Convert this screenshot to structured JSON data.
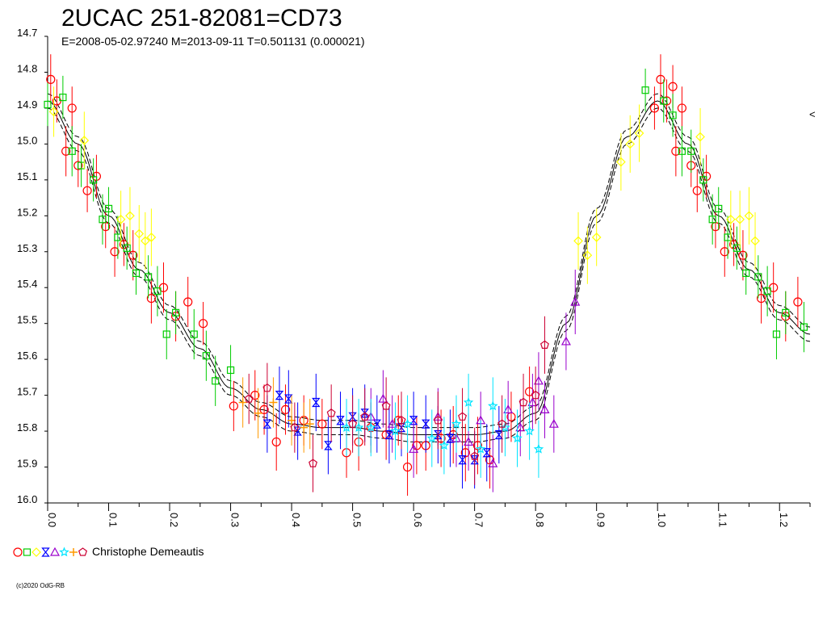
{
  "chart_data": {
    "type": "scatter",
    "title": "2UCAC 251-82081=CD73",
    "subtitle": "E=2008-05-02.97240    M=2013-09-11    T=0.501131 (0.000021)",
    "xlabel": "",
    "ylabel": "",
    "xlim": [
      0.0,
      1.25
    ],
    "ylim": [
      16.0,
      14.7
    ],
    "y_inverted": true,
    "x_ticks": [
      "0.0",
      "0.1",
      "0.2",
      "0.3",
      "0.4",
      "0.5",
      "0.6",
      "0.7",
      "0.8",
      "0.9",
      "1.0",
      "1.1",
      "1.2"
    ],
    "y_ticks": [
      "14.7",
      "14.8",
      "14.9",
      "15.0",
      "15.1",
      "15.2",
      "15.3",
      "15.4",
      "15.5",
      "15.6",
      "15.7",
      "15.8",
      "15.9",
      "16.0"
    ],
    "right_marker": "<",
    "legend": {
      "label": "Christophe Demeautis",
      "placement": "bottom-left"
    },
    "copyright": "(c)2020 OdG-RB",
    "colors": {
      "red": "#ff0000",
      "green": "#00cc00",
      "yellow": "#ffff00",
      "blue": "#0000ff",
      "purple": "#9900cc",
      "cyan": "#00e5ff",
      "orange": "#ff9900",
      "crimson": "#cc0033"
    },
    "fit_curve": {
      "phase": [
        0.0,
        0.05,
        0.1,
        0.15,
        0.2,
        0.25,
        0.3,
        0.35,
        0.4,
        0.45,
        0.5,
        0.55,
        0.6,
        0.65,
        0.7,
        0.75,
        0.8,
        0.85,
        0.9,
        0.95,
        1.0,
        1.05,
        1.1,
        1.15,
        1.2,
        1.25
      ],
      "mag": [
        14.88,
        15.0,
        15.2,
        15.35,
        15.47,
        15.57,
        15.68,
        15.74,
        15.78,
        15.79,
        15.79,
        15.8,
        15.81,
        15.81,
        15.81,
        15.8,
        15.75,
        15.5,
        15.2,
        14.98,
        14.88,
        15.0,
        15.2,
        15.35,
        15.47,
        15.53
      ],
      "offset": 0.02
    },
    "series": [
      {
        "name": "red circles",
        "marker": "circle",
        "color": "red",
        "points": [
          [
            0.005,
            14.82,
            0.07
          ],
          [
            0.015,
            14.88,
            0.06
          ],
          [
            0.03,
            15.02,
            0.07
          ],
          [
            0.04,
            14.9,
            0.06
          ],
          [
            0.05,
            15.06,
            0.06
          ],
          [
            0.065,
            15.13,
            0.06
          ],
          [
            0.08,
            15.09,
            0.06
          ],
          [
            0.095,
            15.23,
            0.06
          ],
          [
            0.11,
            15.3,
            0.07
          ],
          [
            0.125,
            15.28,
            0.06
          ],
          [
            0.14,
            15.31,
            0.07
          ],
          [
            0.17,
            15.43,
            0.07
          ],
          [
            0.19,
            15.4,
            0.07
          ],
          [
            0.21,
            15.48,
            0.07
          ],
          [
            0.23,
            15.44,
            0.07
          ],
          [
            0.255,
            15.5,
            0.06
          ],
          [
            0.305,
            15.73,
            0.07
          ],
          [
            0.34,
            15.7,
            0.07
          ],
          [
            0.355,
            15.74,
            0.07
          ],
          [
            0.375,
            15.83,
            0.08
          ],
          [
            0.39,
            15.74,
            0.07
          ],
          [
            0.42,
            15.77,
            0.07
          ],
          [
            0.45,
            15.78,
            0.07
          ],
          [
            0.49,
            15.86,
            0.07
          ],
          [
            0.51,
            15.83,
            0.08
          ],
          [
            0.53,
            15.79,
            0.07
          ],
          [
            0.555,
            15.81,
            0.07
          ],
          [
            0.575,
            15.77,
            0.07
          ],
          [
            0.59,
            15.9,
            0.08
          ],
          [
            0.605,
            15.84,
            0.08
          ],
          [
            0.62,
            15.84,
            0.07
          ],
          [
            0.645,
            15.82,
            0.08
          ],
          [
            0.665,
            15.81,
            0.08
          ],
          [
            0.685,
            15.86,
            0.08
          ],
          [
            0.705,
            15.84,
            0.08
          ],
          [
            0.725,
            15.88,
            0.08
          ],
          [
            0.76,
            15.76,
            0.07
          ],
          [
            0.79,
            15.69,
            0.07
          ],
          [
            0.995,
            14.9,
            0.06
          ],
          [
            1.005,
            14.82,
            0.07
          ],
          [
            1.015,
            14.88,
            0.06
          ],
          [
            1.025,
            14.84,
            0.06
          ],
          [
            1.03,
            15.02,
            0.07
          ],
          [
            1.04,
            14.9,
            0.06
          ],
          [
            1.055,
            15.06,
            0.06
          ],
          [
            1.065,
            15.13,
            0.06
          ],
          [
            1.08,
            15.09,
            0.06
          ],
          [
            1.095,
            15.23,
            0.06
          ],
          [
            1.11,
            15.3,
            0.07
          ],
          [
            1.125,
            15.28,
            0.06
          ],
          [
            1.14,
            15.31,
            0.07
          ],
          [
            1.17,
            15.43,
            0.07
          ],
          [
            1.19,
            15.4,
            0.07
          ],
          [
            1.21,
            15.48,
            0.07
          ],
          [
            1.23,
            15.44,
            0.07
          ]
        ]
      },
      {
        "name": "green squares",
        "marker": "square",
        "color": "green",
        "points": [
          [
            0.0,
            14.89,
            0.06
          ],
          [
            0.025,
            14.87,
            0.06
          ],
          [
            0.04,
            15.02,
            0.07
          ],
          [
            0.055,
            15.06,
            0.06
          ],
          [
            0.075,
            15.1,
            0.06
          ],
          [
            0.09,
            15.21,
            0.07
          ],
          [
            0.1,
            15.18,
            0.06
          ],
          [
            0.115,
            15.26,
            0.06
          ],
          [
            0.13,
            15.29,
            0.06
          ],
          [
            0.145,
            15.36,
            0.06
          ],
          [
            0.165,
            15.37,
            0.06
          ],
          [
            0.18,
            15.41,
            0.07
          ],
          [
            0.195,
            15.53,
            0.07
          ],
          [
            0.21,
            15.47,
            0.06
          ],
          [
            0.24,
            15.53,
            0.07
          ],
          [
            0.26,
            15.59,
            0.07
          ],
          [
            0.275,
            15.66,
            0.07
          ],
          [
            0.3,
            15.63,
            0.07
          ],
          [
            0.98,
            14.85,
            0.06
          ],
          [
            1.01,
            14.88,
            0.06
          ],
          [
            1.025,
            14.92,
            0.06
          ],
          [
            1.04,
            15.02,
            0.07
          ],
          [
            1.055,
            15.02,
            0.06
          ],
          [
            1.075,
            15.1,
            0.06
          ],
          [
            1.09,
            15.21,
            0.07
          ],
          [
            1.1,
            15.18,
            0.06
          ],
          [
            1.115,
            15.26,
            0.06
          ],
          [
            1.13,
            15.29,
            0.06
          ],
          [
            1.145,
            15.36,
            0.06
          ],
          [
            1.165,
            15.37,
            0.06
          ],
          [
            1.18,
            15.41,
            0.07
          ],
          [
            1.195,
            15.53,
            0.07
          ],
          [
            1.21,
            15.47,
            0.06
          ],
          [
            1.24,
            15.51,
            0.07
          ]
        ]
      },
      {
        "name": "yellow diamonds",
        "marker": "diamond",
        "color": "yellow",
        "points": [
          [
            0.01,
            14.91,
            0.07
          ],
          [
            0.06,
            14.99,
            0.08
          ],
          [
            0.12,
            15.21,
            0.08
          ],
          [
            0.135,
            15.2,
            0.08
          ],
          [
            0.15,
            15.25,
            0.08
          ],
          [
            0.16,
            15.27,
            0.08
          ],
          [
            0.17,
            15.26,
            0.08
          ],
          [
            0.87,
            15.27,
            0.08
          ],
          [
            0.885,
            15.31,
            0.08
          ],
          [
            0.9,
            15.26,
            0.08
          ],
          [
            0.94,
            15.05,
            0.08
          ],
          [
            0.955,
            15.0,
            0.08
          ],
          [
            0.97,
            14.97,
            0.08
          ],
          [
            1.07,
            14.98,
            0.08
          ],
          [
            1.12,
            15.21,
            0.08
          ],
          [
            1.135,
            15.21,
            0.08
          ],
          [
            1.15,
            15.2,
            0.08
          ],
          [
            1.16,
            15.27,
            0.08
          ]
        ]
      },
      {
        "name": "blue hourglasses",
        "marker": "hourglass",
        "color": "blue",
        "points": [
          [
            0.36,
            15.78,
            0.08
          ],
          [
            0.38,
            15.7,
            0.08
          ],
          [
            0.395,
            15.71,
            0.08
          ],
          [
            0.41,
            15.8,
            0.08
          ],
          [
            0.44,
            15.72,
            0.08
          ],
          [
            0.46,
            15.84,
            0.08
          ],
          [
            0.48,
            15.77,
            0.08
          ],
          [
            0.5,
            15.76,
            0.08
          ],
          [
            0.52,
            15.75,
            0.08
          ],
          [
            0.54,
            15.78,
            0.08
          ],
          [
            0.56,
            15.81,
            0.08
          ],
          [
            0.58,
            15.79,
            0.08
          ],
          [
            0.6,
            15.77,
            0.08
          ],
          [
            0.62,
            15.78,
            0.08
          ],
          [
            0.64,
            15.81,
            0.08
          ],
          [
            0.66,
            15.82,
            0.08
          ],
          [
            0.68,
            15.88,
            0.08
          ],
          [
            0.7,
            15.88,
            0.08
          ],
          [
            0.72,
            15.86,
            0.08
          ],
          [
            0.74,
            15.81,
            0.08
          ]
        ]
      },
      {
        "name": "purple triangles",
        "marker": "triangle",
        "color": "purple",
        "points": [
          [
            0.53,
            15.76,
            0.08
          ],
          [
            0.55,
            15.71,
            0.08
          ],
          [
            0.565,
            15.78,
            0.08
          ],
          [
            0.6,
            15.85,
            0.08
          ],
          [
            0.64,
            15.76,
            0.08
          ],
          [
            0.67,
            15.82,
            0.08
          ],
          [
            0.69,
            15.83,
            0.08
          ],
          [
            0.71,
            15.77,
            0.08
          ],
          [
            0.73,
            15.89,
            0.08
          ],
          [
            0.755,
            15.74,
            0.08
          ],
          [
            0.775,
            15.79,
            0.08
          ],
          [
            0.795,
            15.72,
            0.08
          ],
          [
            0.805,
            15.66,
            0.08
          ],
          [
            0.815,
            15.74,
            0.08
          ],
          [
            0.83,
            15.78,
            0.08
          ],
          [
            0.85,
            15.55,
            0.08
          ],
          [
            0.865,
            15.44,
            0.09
          ]
        ]
      },
      {
        "name": "cyan stars",
        "marker": "star",
        "color": "cyan",
        "points": [
          [
            0.49,
            15.79,
            0.08
          ],
          [
            0.51,
            15.79,
            0.08
          ],
          [
            0.53,
            15.79,
            0.08
          ],
          [
            0.57,
            15.8,
            0.08
          ],
          [
            0.59,
            15.78,
            0.08
          ],
          [
            0.63,
            15.82,
            0.08
          ],
          [
            0.65,
            15.84,
            0.08
          ],
          [
            0.67,
            15.78,
            0.08
          ],
          [
            0.69,
            15.72,
            0.08
          ],
          [
            0.71,
            15.85,
            0.08
          ],
          [
            0.73,
            15.73,
            0.08
          ],
          [
            0.75,
            15.79,
            0.08
          ],
          [
            0.77,
            15.82,
            0.08
          ],
          [
            0.79,
            15.8,
            0.08
          ],
          [
            0.805,
            15.85,
            0.08
          ]
        ]
      },
      {
        "name": "orange crosses",
        "marker": "cross",
        "color": "orange",
        "points": [
          [
            0.32,
            15.72,
            0.07
          ],
          [
            0.345,
            15.75,
            0.07
          ],
          [
            0.37,
            15.72,
            0.07
          ],
          [
            0.4,
            15.77,
            0.07
          ],
          [
            0.42,
            15.79,
            0.07
          ],
          [
            0.43,
            15.78,
            0.07
          ]
        ]
      },
      {
        "name": "crimson pentagons",
        "marker": "pentagon",
        "color": "crimson",
        "points": [
          [
            0.33,
            15.71,
            0.07
          ],
          [
            0.36,
            15.68,
            0.07
          ],
          [
            0.405,
            15.79,
            0.07
          ],
          [
            0.435,
            15.89,
            0.08
          ],
          [
            0.465,
            15.75,
            0.08
          ],
          [
            0.5,
            15.78,
            0.08
          ],
          [
            0.52,
            15.76,
            0.08
          ],
          [
            0.555,
            15.73,
            0.08
          ],
          [
            0.58,
            15.77,
            0.08
          ],
          [
            0.64,
            15.77,
            0.08
          ],
          [
            0.68,
            15.76,
            0.08
          ],
          [
            0.7,
            15.87,
            0.08
          ],
          [
            0.745,
            15.78,
            0.08
          ],
          [
            0.78,
            15.72,
            0.08
          ],
          [
            0.8,
            15.7,
            0.08
          ],
          [
            0.815,
            15.56,
            0.08
          ]
        ]
      }
    ]
  }
}
